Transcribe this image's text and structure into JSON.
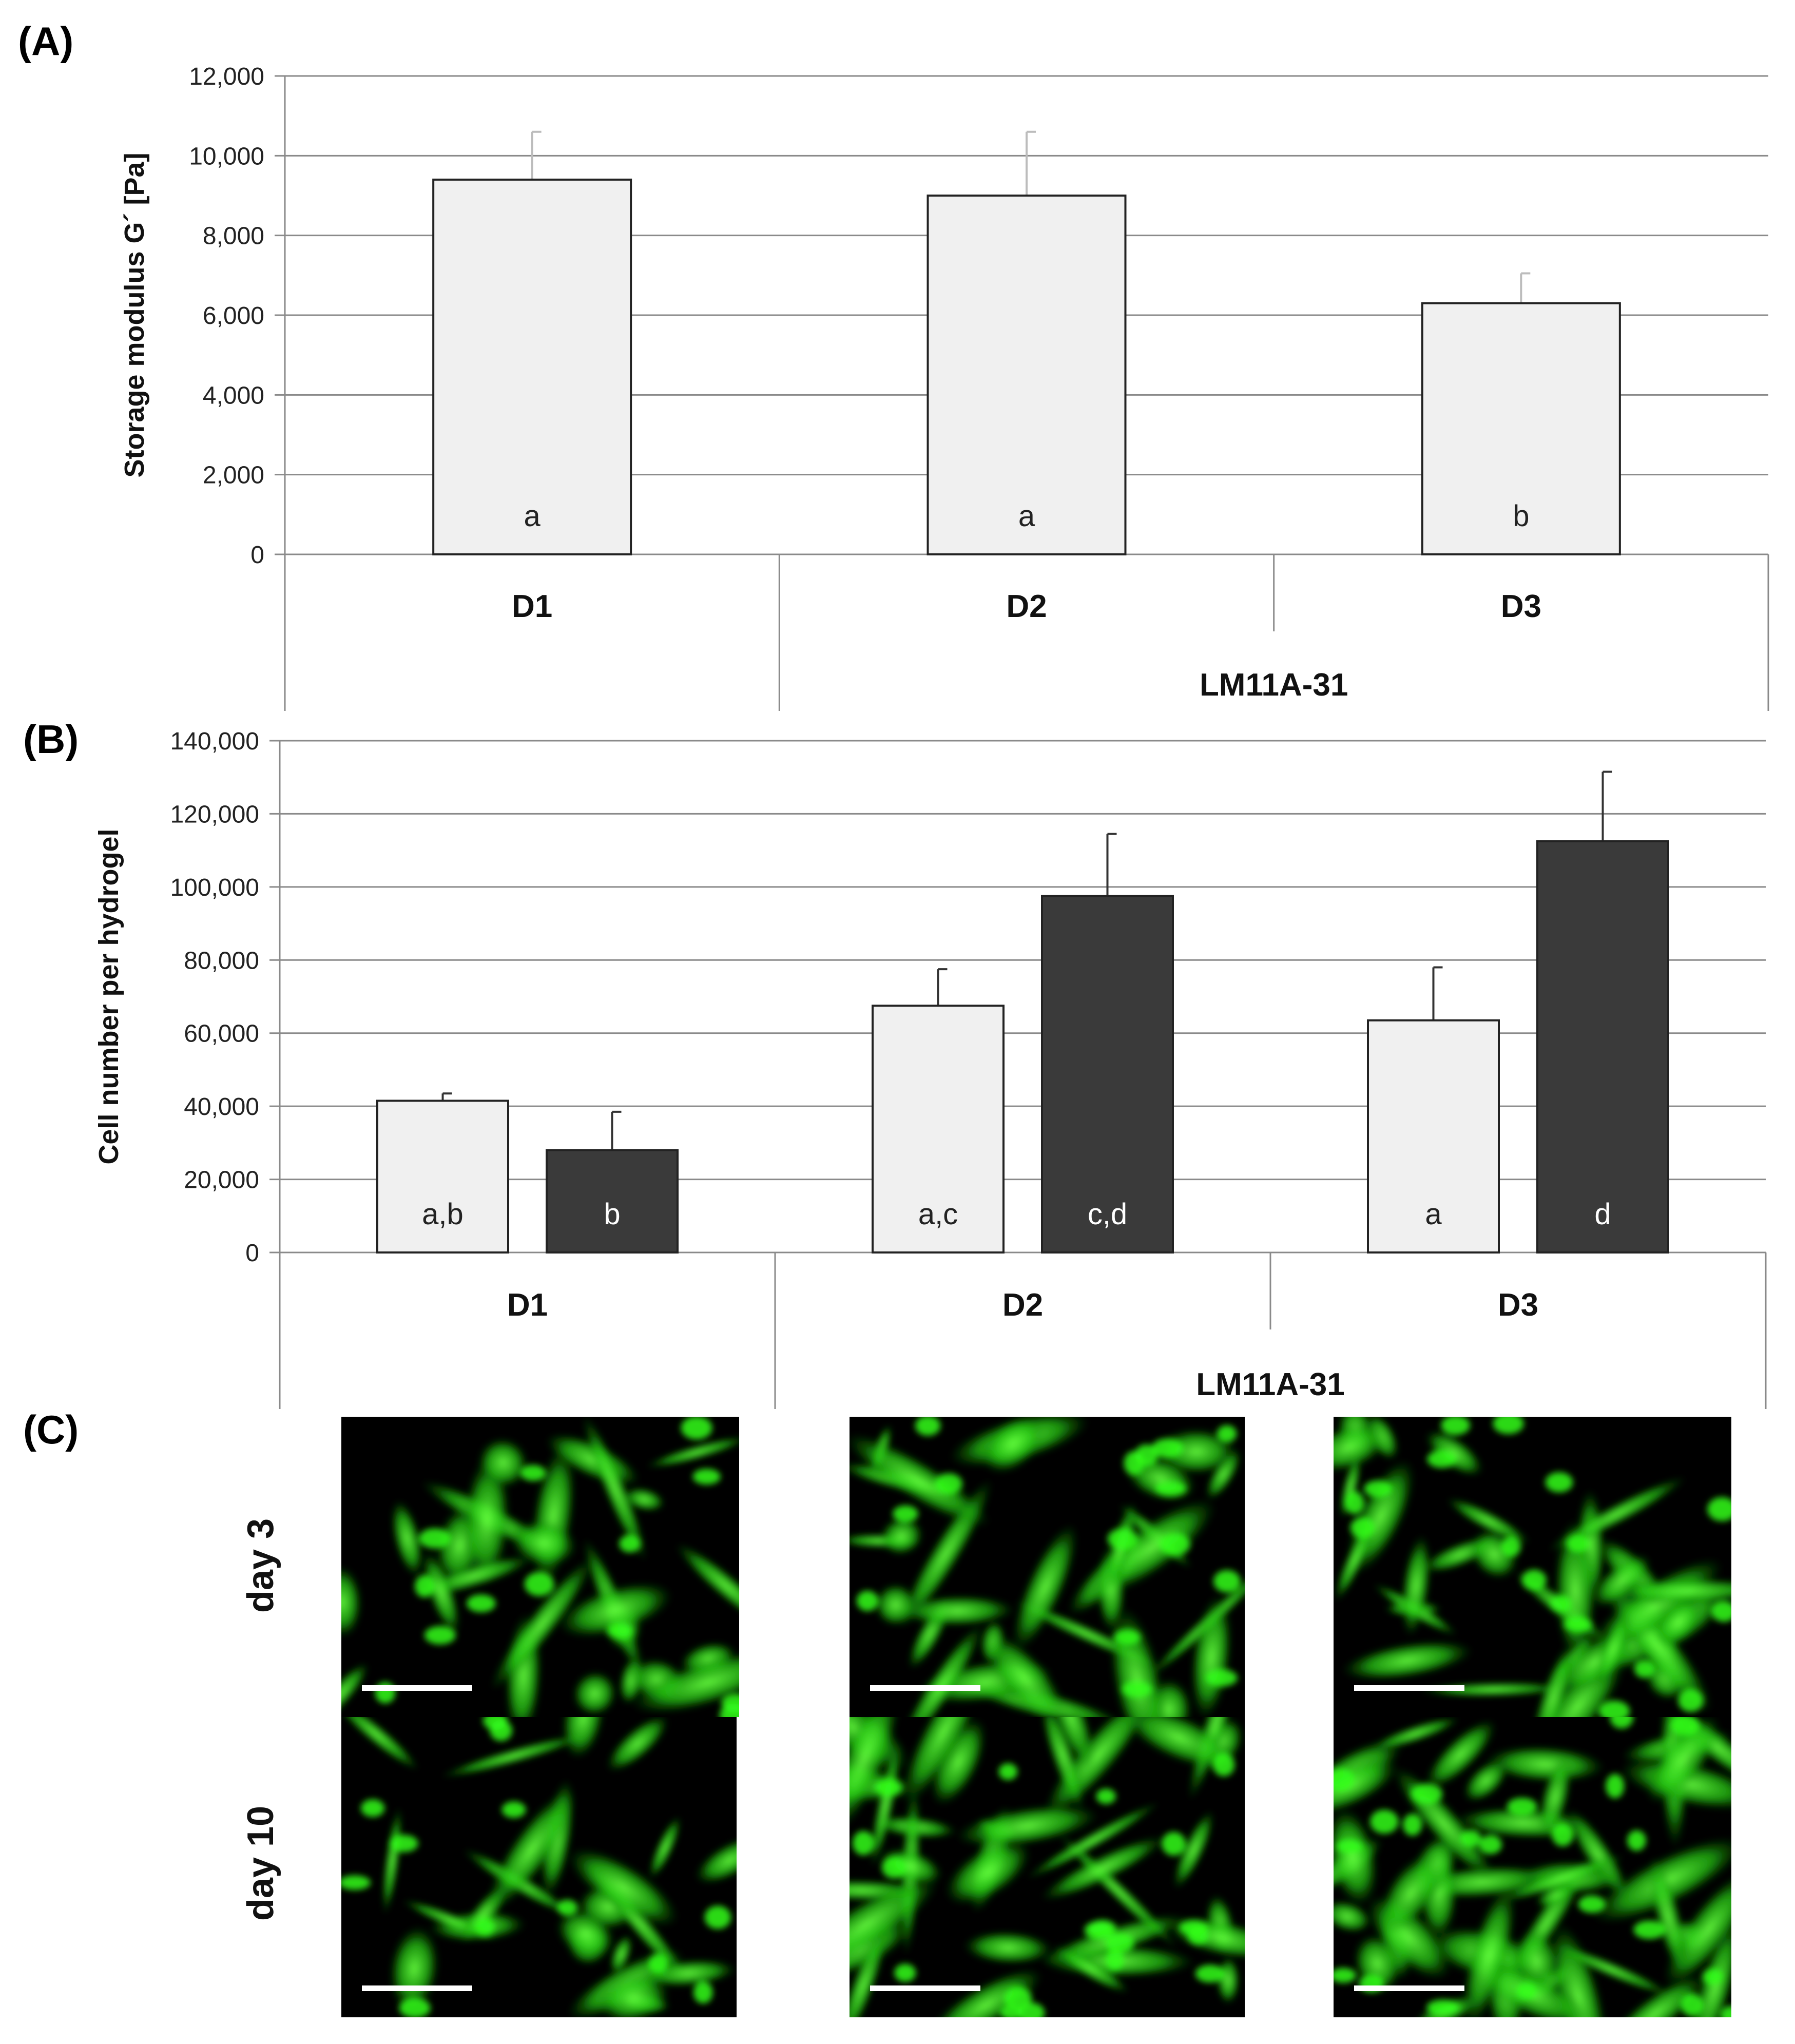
{
  "panels": {
    "A": "(A)",
    "B": "(B)",
    "C": "(C)"
  },
  "chart_data": [
    {
      "panel": "A",
      "type": "bar",
      "ylabel": "Storage modulus G´ [Pa]",
      "ylim": [
        0,
        12000
      ],
      "ytick_labels": [
        "0",
        "2,000",
        "4,000",
        "6,000",
        "8,000",
        "10,000",
        "12,000"
      ],
      "categories": [
        "D1",
        "D2",
        "D3"
      ],
      "group_label": "LM11A-31",
      "grid": true,
      "series": [
        {
          "color": "#f0f0f0",
          "values": [
            9400,
            9000,
            6300
          ],
          "errors": [
            1200,
            1600,
            750
          ],
          "annotations": [
            "a",
            "a",
            "b"
          ]
        }
      ]
    },
    {
      "panel": "B",
      "type": "bar",
      "ylabel": "Cell number per hydrogel",
      "ylim": [
        0,
        140000
      ],
      "ytick_labels": [
        "0",
        "20,000",
        "40,000",
        "60,000",
        "80,000",
        "100,000",
        "120,000",
        "140,000"
      ],
      "categories": [
        "D1",
        "D2",
        "D3"
      ],
      "group_label": "LM11A-31",
      "grid": true,
      "series": [
        {
          "color": "#f0f0f0",
          "values": [
            41500,
            67500,
            63500
          ],
          "errors": [
            2000,
            10000,
            14500
          ],
          "annotations": [
            "a,b",
            "a,c",
            "a"
          ]
        },
        {
          "color": "#3a3a3a",
          "values": [
            28000,
            97500,
            112500
          ],
          "errors": [
            10500,
            17000,
            19000
          ],
          "annotations": [
            "b",
            "c,d",
            "d"
          ]
        }
      ]
    }
  ],
  "micrographs": {
    "row_labels": [
      "day 3",
      "day 10"
    ],
    "colors": {
      "background": "#000000",
      "stain": "#33ff1a",
      "scale_bar": "#ffffff"
    }
  }
}
